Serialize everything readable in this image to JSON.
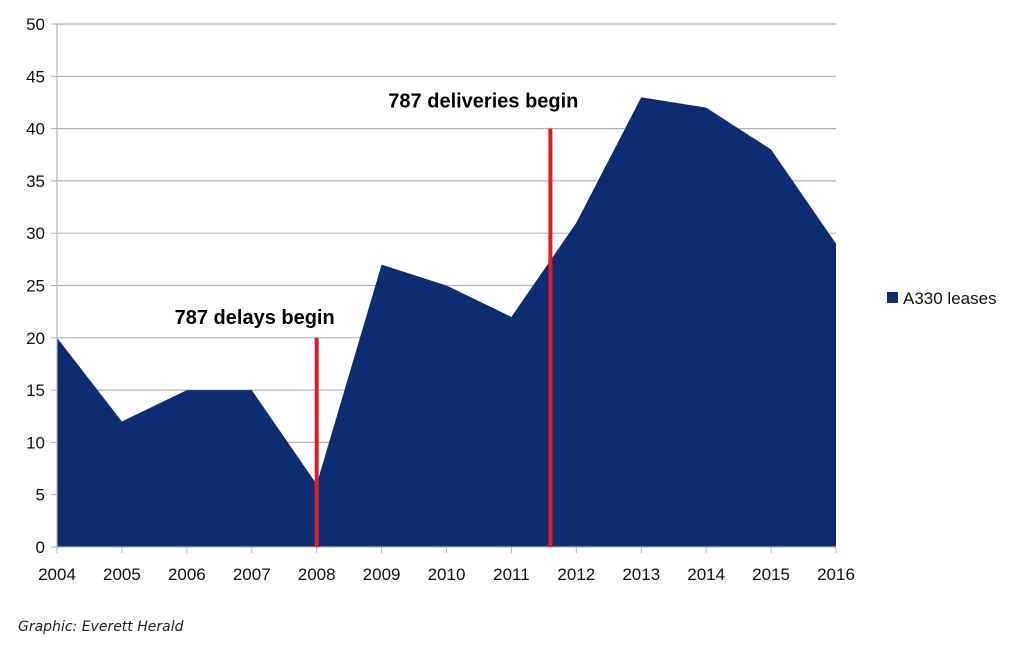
{
  "chart_data": {
    "type": "area",
    "title": "",
    "xlabel": "",
    "ylabel": "",
    "x": [
      "2004",
      "2005",
      "2006",
      "2007",
      "2008",
      "2009",
      "2010",
      "2011",
      "2012",
      "2013",
      "2014",
      "2015",
      "2016"
    ],
    "series": [
      {
        "name": "A330 leases",
        "values": [
          20,
          12,
          15,
          15,
          6,
          27,
          25,
          22,
          31,
          43,
          42,
          38,
          29
        ]
      }
    ],
    "ylim": [
      0,
      50
    ],
    "yticks": [
      0,
      5,
      10,
      15,
      20,
      25,
      30,
      35,
      40,
      45,
      50
    ],
    "grid": true,
    "legend_position": "right",
    "annotations": [
      {
        "text": "787 delays begin",
        "x": 2008,
        "line_top_value": 20
      },
      {
        "text": "787 deliveries begin",
        "x": 2011.6,
        "line_top_value": 40
      }
    ]
  },
  "credit": "Graphic: Everett Herald",
  "colors": {
    "area": "#0d2d72",
    "marker_line": "#e01b24",
    "grid": "#b3b3b3",
    "axis": "#b3b3b3"
  }
}
